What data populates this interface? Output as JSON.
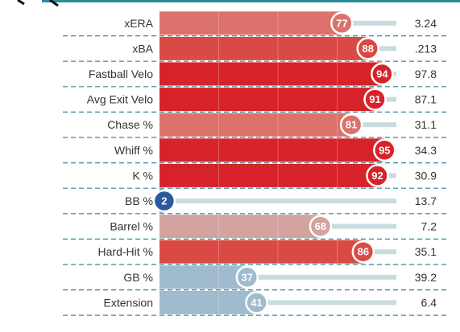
{
  "chart_data": {
    "type": "bar",
    "orientation": "horizontal",
    "xlim": [
      0,
      100
    ],
    "colors": {
      "elite": "#d8222a",
      "great": "#da4a44",
      "good": "#dc726b",
      "above_avg": "#d2a39f",
      "below_avg": "#a0bace",
      "poor": "#2a5a9e",
      "track": "#c8dce0",
      "divider": "#2a8a97"
    },
    "rows": [
      {
        "metric": "xERA",
        "percentile": 77,
        "value": "3.24"
      },
      {
        "metric": "xBA",
        "percentile": 88,
        "value": ".213"
      },
      {
        "metric": "Fastball Velo",
        "percentile": 94,
        "value": "97.8"
      },
      {
        "metric": "Avg Exit Velo",
        "percentile": 91,
        "value": "87.1"
      },
      {
        "metric": "Chase %",
        "percentile": 81,
        "value": "31.1"
      },
      {
        "metric": "Whiff %",
        "percentile": 95,
        "value": "34.3"
      },
      {
        "metric": "K %",
        "percentile": 92,
        "value": "30.9"
      },
      {
        "metric": "BB %",
        "percentile": 2,
        "value": "13.7"
      },
      {
        "metric": "Barrel %",
        "percentile": 68,
        "value": "7.2"
      },
      {
        "metric": "Hard-Hit %",
        "percentile": 86,
        "value": "35.1"
      },
      {
        "metric": "GB %",
        "percentile": 37,
        "value": "39.2"
      },
      {
        "metric": "Extension",
        "percentile": 41,
        "value": "6.4"
      }
    ]
  }
}
